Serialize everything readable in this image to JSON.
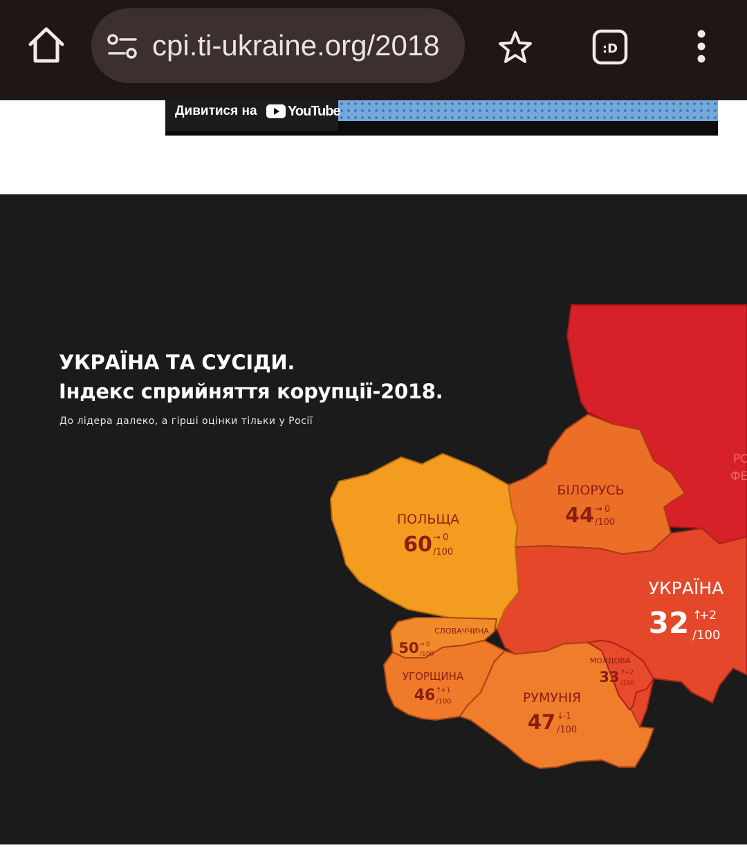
{
  "browser": {
    "url": "cpi.ti-ukraine.org/2018",
    "icons": {
      "home": "home-icon",
      "site_info": "tune-icon",
      "bookmark": "star-icon",
      "extension": "extension-face-icon",
      "menu": "more-vert-icon"
    },
    "extension_label": ":D"
  },
  "video_embed": {
    "watch_on": "Дивитися на",
    "platform": "YouTube"
  },
  "infographic": {
    "title_line1": "УКРАЇНА ТА СУСІДИ.",
    "title_line2": "Індекс сприйняття корупції-2018.",
    "subtitle": "До лідера далеко, а гірші оцінки тільки у Росії",
    "scale_suffix": "/100",
    "countries": [
      {
        "id": "poland",
        "name": "ПОЛЬЩА",
        "score": "60",
        "change": "0",
        "trend": "flat",
        "color": "#f39c1f"
      },
      {
        "id": "belarus",
        "name": "БІЛОРУСЬ",
        "score": "44",
        "change": "0",
        "trend": "flat",
        "color": "#ec6f28"
      },
      {
        "id": "ukraine",
        "name": "УКРАЇНА",
        "score": "32",
        "change": "+2",
        "trend": "up",
        "color": "#e5472a"
      },
      {
        "id": "slovakia",
        "name": "СЛОВАЧЧИНА",
        "score": "50",
        "change": "0",
        "trend": "flat",
        "color": "#f08a2a"
      },
      {
        "id": "hungary",
        "name": "УГОРЩИНА",
        "score": "46",
        "change": "+1",
        "trend": "up",
        "color": "#ee7a2a"
      },
      {
        "id": "romania",
        "name": "РУМУНІЯ",
        "score": "47",
        "change": "-1",
        "trend": "down",
        "color": "#f07d2c"
      },
      {
        "id": "moldova",
        "name": "МОЛДОВА",
        "score": "33",
        "change": "+2",
        "trend": "up",
        "color": "#e84a2c"
      },
      {
        "id": "russia",
        "name_line1": "РО",
        "name_line2": "ФЕ",
        "color": "#d72128"
      }
    ],
    "label_color": "#8a1e12"
  }
}
